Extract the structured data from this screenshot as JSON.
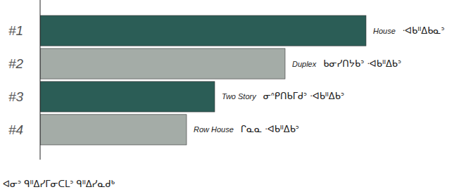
{
  "chart_data": {
    "type": "bar",
    "orientation": "horizontal",
    "categories": [
      "#1",
      "#2",
      "#3",
      "#4"
    ],
    "values": [
      463,
      348,
      248,
      208
    ],
    "colors": [
      "#2b5d56",
      "#a4aca7",
      "#2b5d56",
      "#a4aca7"
    ],
    "xlim": [
      0,
      500
    ],
    "tick_labels": "y",
    "grid": false,
    "bar_labels": [
      [
        "House",
        "ᐧᐊᑲᐦᐃᑲᓇᐣ"
      ],
      [
        "Duplex",
        "ᑲᓂᓯᑎᔭᑲᐣ ᐧᐊᑲᐦᐃᑲᐣ"
      ],
      [
        "Two Story",
        "ᓂᐢᑭᑎᑲᒥᑯᐣ ᐧᐊᑲᐦᐃᑲᐣ"
      ],
      [
        "Row House",
        "ᒋᓇᓇ ᐧᐊᑲᐦᐃᑲᐣ"
      ]
    ],
    "footnote": "ᐊᓂᐣ ᑫᐦᐃᓯᒥᓂᑕᒪᐣ ᑫᐦᐃᓯᓇᑯᒃ"
  }
}
